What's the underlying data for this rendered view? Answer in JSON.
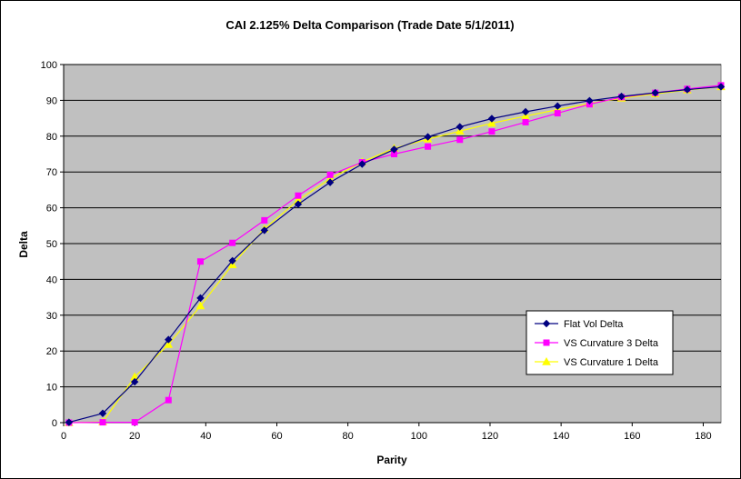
{
  "chart_data": {
    "type": "line",
    "title": "CAI 2.125% Delta Comparison (Trade Date 5/1/2011)",
    "xlabel": "Parity",
    "ylabel": "Delta",
    "xlim": [
      0,
      185
    ],
    "ylim": [
      0,
      100
    ],
    "xticks": [
      0,
      20,
      40,
      60,
      80,
      100,
      120,
      140,
      160,
      180
    ],
    "yticks": [
      0,
      10,
      20,
      30,
      40,
      50,
      60,
      70,
      80,
      90,
      100
    ],
    "grid": true,
    "legend_position": "bottom-right",
    "plot_background": "#C0C0C0",
    "series": [
      {
        "name": "Flat Vol Delta",
        "color": "#000080",
        "marker": "diamond",
        "points": [
          [
            1.5,
            0.1
          ],
          [
            11,
            2.6
          ],
          [
            20,
            11.4
          ],
          [
            29.5,
            23.2
          ],
          [
            38.5,
            34.8
          ],
          [
            47.5,
            45.2
          ],
          [
            56.5,
            53.7
          ],
          [
            66,
            61
          ],
          [
            75,
            67.1
          ],
          [
            84,
            72.2
          ],
          [
            93,
            76.3
          ],
          [
            102.5,
            79.8
          ],
          [
            111.5,
            82.6
          ],
          [
            120.5,
            84.9
          ],
          [
            130,
            86.8
          ],
          [
            139,
            88.4
          ],
          [
            148,
            89.9
          ],
          [
            157,
            91.1
          ],
          [
            166.5,
            92.1
          ],
          [
            175.5,
            93
          ],
          [
            185,
            93.8
          ]
        ]
      },
      {
        "name": "VS Curvature 3 Delta",
        "color": "#FF00FF",
        "marker": "square",
        "points": [
          [
            1.5,
            0
          ],
          [
            11,
            0.1
          ],
          [
            20,
            0.1
          ],
          [
            29.5,
            6.3
          ],
          [
            38.5,
            45
          ],
          [
            47.5,
            50.2
          ],
          [
            56.5,
            56.5
          ],
          [
            66,
            63.4
          ],
          [
            75,
            69.2
          ],
          [
            84,
            72.7
          ],
          [
            93,
            75
          ],
          [
            102.5,
            77.1
          ],
          [
            111.5,
            79
          ],
          [
            120.5,
            81.3
          ],
          [
            130,
            83.9
          ],
          [
            139,
            86.4
          ],
          [
            148,
            88.9
          ],
          [
            157,
            90.9
          ],
          [
            166.5,
            92.1
          ],
          [
            175.5,
            93.2
          ],
          [
            185,
            94.2
          ]
        ]
      },
      {
        "name": "VS Curvature 1 Delta",
        "color": "#FFFF00",
        "marker": "triangle",
        "points": [
          [
            1.5,
            0
          ],
          [
            11,
            0.2
          ],
          [
            20,
            12.8
          ],
          [
            29.5,
            21.8
          ],
          [
            38.5,
            32.6
          ],
          [
            47.5,
            44.1
          ],
          [
            56.5,
            54.1
          ],
          [
            66,
            62.1
          ],
          [
            75,
            68.1
          ],
          [
            84,
            72.8
          ],
          [
            93,
            76.6
          ],
          [
            102.5,
            79.2
          ],
          [
            111.5,
            81.4
          ],
          [
            120.5,
            83.6
          ],
          [
            130,
            85.6
          ],
          [
            139,
            87.4
          ],
          [
            148,
            89.1
          ],
          [
            157,
            90.6
          ],
          [
            166.5,
            91.8
          ],
          [
            175.5,
            92.9
          ],
          [
            185,
            93.8
          ]
        ]
      }
    ]
  }
}
